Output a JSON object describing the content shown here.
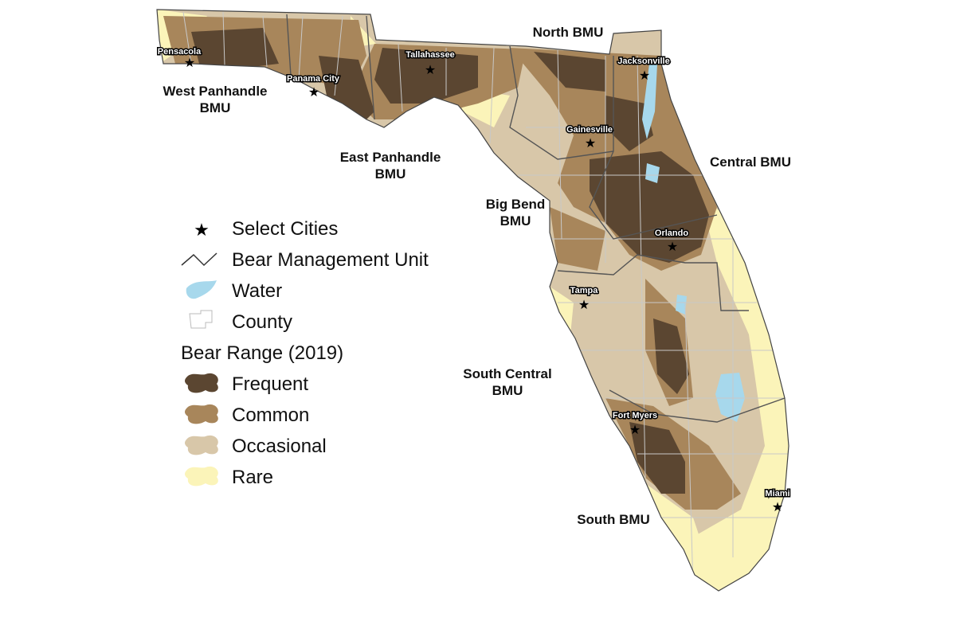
{
  "bmu_labels": [
    {
      "lines": [
        "North BMU"
      ]
    },
    {
      "lines": [
        "West Panhandle",
        "BMU"
      ]
    },
    {
      "lines": [
        "East Panhandle",
        "BMU"
      ]
    },
    {
      "lines": [
        "Big Bend",
        "BMU"
      ]
    },
    {
      "lines": [
        "Central BMU"
      ]
    },
    {
      "lines": [
        "South Central",
        "BMU"
      ]
    },
    {
      "lines": [
        "South BMU"
      ]
    }
  ],
  "cities": [
    "Pensacola",
    "Panama City",
    "Tallahassee",
    "Jacksonville",
    "Gainesville",
    "Orlando",
    "Tampa",
    "Fort Myers",
    "Miami"
  ],
  "legend": {
    "items": [
      "Select Cities",
      "Bear Management Unit",
      "Water",
      "County"
    ],
    "range_title": "Bear Range (2019)",
    "ranges": [
      "Frequent",
      "Common",
      "Occasional",
      "Rare"
    ]
  }
}
